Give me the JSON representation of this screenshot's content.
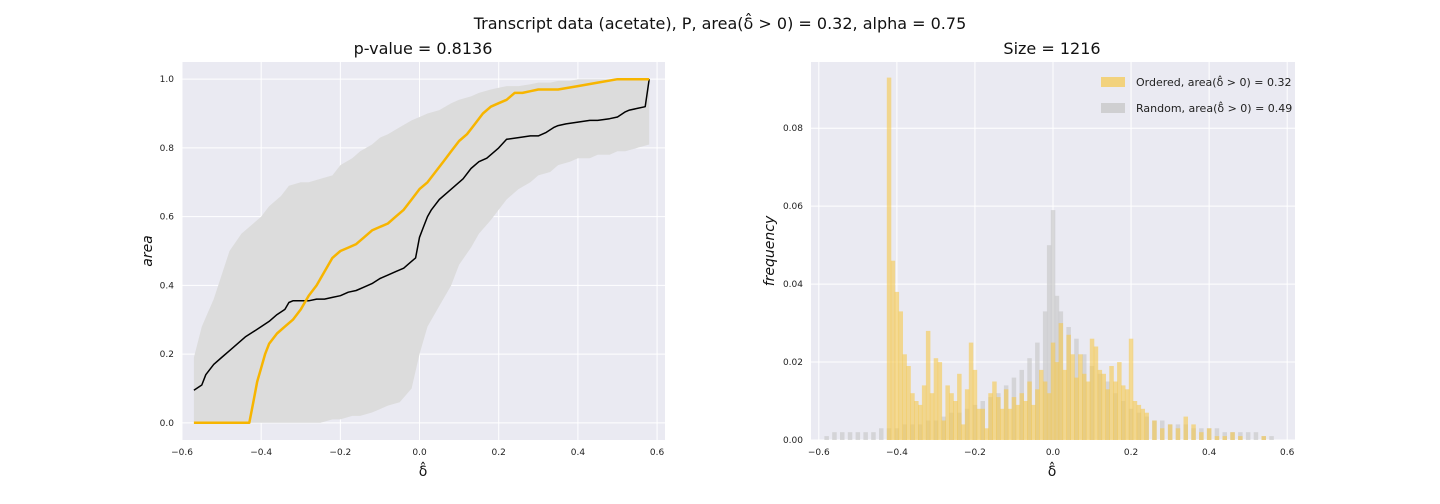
{
  "figure": {
    "suptitle": "Transcript data (acetate), P, area(δ̂ > 0) = 0.32, alpha = 0.75"
  },
  "colors": {
    "axes_bg": "#eaeaf2",
    "grid": "#ffffff",
    "ordered": "#f7b500",
    "band": "#dcdcdc",
    "null_line": "#000000",
    "ordered_hist": "#f5c84c",
    "random_hist": "#c8c8c8"
  },
  "chart_data": [
    {
      "type": "line",
      "title": "p-value = 0.8136",
      "xlabel": "δ̂",
      "ylabel": "area",
      "xlim": [
        -0.6,
        0.62
      ],
      "ylim": [
        -0.05,
        1.05
      ],
      "xticks": [
        -0.6,
        -0.4,
        -0.2,
        0.0,
        0.2,
        0.4,
        0.6
      ],
      "xtick_labels": [
        "−0.6",
        "−0.4",
        "−0.2",
        "0.0",
        "0.2",
        "0.4",
        "0.6"
      ],
      "yticks": [
        0.0,
        0.2,
        0.4,
        0.6,
        0.8,
        1.0
      ],
      "ytick_labels": [
        "0.0",
        "0.2",
        "0.4",
        "0.6",
        "0.8",
        "1.0"
      ],
      "grid": true,
      "band": {
        "x": [
          -0.57,
          -0.55,
          -0.52,
          -0.5,
          -0.48,
          -0.45,
          -0.42,
          -0.4,
          -0.38,
          -0.35,
          -0.33,
          -0.3,
          -0.28,
          -0.25,
          -0.22,
          -0.2,
          -0.17,
          -0.15,
          -0.12,
          -0.1,
          -0.08,
          -0.05,
          -0.02,
          0.0,
          0.02,
          0.05,
          0.08,
          0.1,
          0.13,
          0.15,
          0.18,
          0.2,
          0.22,
          0.25,
          0.28,
          0.3,
          0.33,
          0.35,
          0.38,
          0.4,
          0.43,
          0.45,
          0.48,
          0.5,
          0.52,
          0.55,
          0.58
        ],
        "upper": [
          0.19,
          0.28,
          0.36,
          0.43,
          0.5,
          0.55,
          0.58,
          0.6,
          0.63,
          0.66,
          0.69,
          0.7,
          0.7,
          0.71,
          0.72,
          0.75,
          0.77,
          0.79,
          0.81,
          0.83,
          0.84,
          0.86,
          0.88,
          0.89,
          0.9,
          0.91,
          0.93,
          0.94,
          0.95,
          0.96,
          0.97,
          0.975,
          0.98,
          0.98,
          0.985,
          0.99,
          0.99,
          0.995,
          0.995,
          1.0,
          1.0,
          1.0,
          1.0,
          1.0,
          1.0,
          1.0,
          1.0
        ],
        "lower": [
          0.0,
          0.0,
          0.0,
          0.0,
          0.0,
          0.0,
          0.0,
          0.0,
          0.0,
          0.0,
          0.0,
          0.0,
          0.0,
          0.0,
          0.01,
          0.01,
          0.02,
          0.02,
          0.03,
          0.04,
          0.05,
          0.06,
          0.1,
          0.2,
          0.28,
          0.34,
          0.4,
          0.46,
          0.51,
          0.55,
          0.59,
          0.62,
          0.65,
          0.68,
          0.7,
          0.72,
          0.73,
          0.75,
          0.76,
          0.77,
          0.77,
          0.78,
          0.78,
          0.79,
          0.79,
          0.8,
          0.81
        ]
      },
      "series": [
        {
          "x": [
            -0.57,
            -0.55,
            -0.54,
            -0.52,
            -0.5,
            -0.48,
            -0.46,
            -0.44,
            -0.42,
            -0.4,
            -0.38,
            -0.36,
            -0.34,
            -0.33,
            -0.32,
            -0.3,
            -0.28,
            -0.26,
            -0.24,
            -0.22,
            -0.2,
            -0.18,
            -0.16,
            -0.14,
            -0.12,
            -0.1,
            -0.08,
            -0.06,
            -0.04,
            -0.03,
            -0.02,
            -0.01,
            0.0,
            0.01,
            0.02,
            0.03,
            0.05,
            0.07,
            0.09,
            0.11,
            0.13,
            0.15,
            0.17,
            0.19,
            0.2,
            0.22,
            0.25,
            0.28,
            0.3,
            0.32,
            0.34,
            0.35,
            0.37,
            0.4,
            0.43,
            0.45,
            0.48,
            0.5,
            0.52,
            0.53,
            0.55,
            0.57,
            0.58
          ],
          "y": [
            0.095,
            0.11,
            0.14,
            0.17,
            0.19,
            0.21,
            0.23,
            0.25,
            0.265,
            0.28,
            0.295,
            0.315,
            0.33,
            0.35,
            0.355,
            0.355,
            0.355,
            0.36,
            0.36,
            0.365,
            0.37,
            0.38,
            0.385,
            0.395,
            0.405,
            0.42,
            0.43,
            0.44,
            0.45,
            0.46,
            0.47,
            0.48,
            0.54,
            0.57,
            0.6,
            0.62,
            0.65,
            0.67,
            0.69,
            0.71,
            0.74,
            0.76,
            0.77,
            0.79,
            0.8,
            0.825,
            0.83,
            0.835,
            0.835,
            0.845,
            0.86,
            0.865,
            0.87,
            0.875,
            0.88,
            0.88,
            0.885,
            0.89,
            0.905,
            0.91,
            0.915,
            0.92,
            1.0
          ]
        },
        {
          "x": [
            -0.57,
            -0.52,
            -0.47,
            -0.43,
            -0.42,
            -0.41,
            -0.4,
            -0.39,
            -0.38,
            -0.36,
            -0.34,
            -0.32,
            -0.3,
            -0.28,
            -0.26,
            -0.24,
            -0.22,
            -0.2,
            -0.18,
            -0.16,
            -0.14,
            -0.12,
            -0.1,
            -0.08,
            -0.06,
            -0.04,
            -0.02,
            0.0,
            0.02,
            0.04,
            0.06,
            0.08,
            0.1,
            0.12,
            0.14,
            0.16,
            0.18,
            0.2,
            0.22,
            0.24,
            0.26,
            0.28,
            0.3,
            0.35,
            0.4,
            0.45,
            0.5,
            0.55,
            0.58
          ],
          "y": [
            0.0,
            0.0,
            0.0,
            0.0,
            0.06,
            0.12,
            0.16,
            0.2,
            0.23,
            0.26,
            0.28,
            0.3,
            0.33,
            0.37,
            0.4,
            0.44,
            0.48,
            0.5,
            0.51,
            0.52,
            0.54,
            0.56,
            0.57,
            0.58,
            0.6,
            0.62,
            0.65,
            0.68,
            0.7,
            0.73,
            0.76,
            0.79,
            0.82,
            0.84,
            0.87,
            0.9,
            0.92,
            0.93,
            0.94,
            0.96,
            0.96,
            0.965,
            0.97,
            0.97,
            0.98,
            0.99,
            1.0,
            1.0,
            1.0
          ]
        }
      ]
    },
    {
      "type": "bar",
      "title": "Size = 1216",
      "xlabel": "δ̂",
      "ylabel": "frequency",
      "xlim": [
        -0.62,
        0.62
      ],
      "ylim": [
        0,
        0.097
      ],
      "xticks": [
        -0.6,
        -0.4,
        -0.2,
        0.0,
        0.2,
        0.4,
        0.6
      ],
      "xtick_labels": [
        "−0.6",
        "−0.4",
        "−0.2",
        "0.0",
        "0.2",
        "0.4",
        "0.6"
      ],
      "yticks": [
        0.0,
        0.02,
        0.04,
        0.06,
        0.08
      ],
      "ytick_labels": [
        "0.00",
        "0.02",
        "0.04",
        "0.06",
        "0.08"
      ],
      "grid": true,
      "legend_position": "top-right",
      "bin_width": 0.0115,
      "series": [
        {
          "name": "Ordered, area(δ̂ > 0) = 0.32",
          "x": [
            -0.42,
            -0.41,
            -0.4,
            -0.39,
            -0.38,
            -0.37,
            -0.36,
            -0.35,
            -0.34,
            -0.33,
            -0.32,
            -0.31,
            -0.3,
            -0.29,
            -0.28,
            -0.27,
            -0.26,
            -0.25,
            -0.24,
            -0.23,
            -0.22,
            -0.21,
            -0.2,
            -0.19,
            -0.18,
            -0.17,
            -0.16,
            -0.15,
            -0.14,
            -0.13,
            -0.12,
            -0.11,
            -0.1,
            -0.09,
            -0.08,
            -0.07,
            -0.06,
            -0.05,
            -0.04,
            -0.03,
            -0.02,
            -0.01,
            0.0,
            0.01,
            0.02,
            0.03,
            0.04,
            0.05,
            0.06,
            0.07,
            0.08,
            0.09,
            0.1,
            0.11,
            0.12,
            0.13,
            0.14,
            0.15,
            0.16,
            0.17,
            0.18,
            0.19,
            0.2,
            0.21,
            0.22,
            0.23,
            0.24,
            0.26,
            0.28,
            0.3,
            0.32,
            0.34,
            0.36,
            0.38,
            0.4,
            0.42,
            0.44,
            0.46,
            0.48,
            0.5,
            0.52,
            0.54
          ],
          "values": [
            0.093,
            0.046,
            0.038,
            0.033,
            0.022,
            0.019,
            0.012,
            0.01,
            0.009,
            0.014,
            0.028,
            0.012,
            0.021,
            0.02,
            0.005,
            0.014,
            0.012,
            0.01,
            0.017,
            0.004,
            0.013,
            0.025,
            0.018,
            0.008,
            0.008,
            0.003,
            0.012,
            0.015,
            0.011,
            0.008,
            0.013,
            0.008,
            0.011,
            0.009,
            0.012,
            0.01,
            0.015,
            0.009,
            0.013,
            0.018,
            0.015,
            0.012,
            0.025,
            0.02,
            0.03,
            0.018,
            0.027,
            0.022,
            0.016,
            0.022,
            0.017,
            0.015,
            0.026,
            0.024,
            0.018,
            0.017,
            0.013,
            0.019,
            0.015,
            0.02,
            0.014,
            0.013,
            0.026,
            0.01,
            0.009,
            0.008,
            0.007,
            0.005,
            0.003,
            0.004,
            0.003,
            0.006,
            0.004,
            0.002,
            0.003,
            0.001,
            0.001,
            0.002,
            0.001,
            0.0,
            0.0,
            0.001
          ]
        },
        {
          "name": "Random, area(δ̂ > 0) = 0.49",
          "x": [
            -0.58,
            -0.56,
            -0.54,
            -0.52,
            -0.5,
            -0.48,
            -0.46,
            -0.44,
            -0.42,
            -0.4,
            -0.38,
            -0.36,
            -0.34,
            -0.32,
            -0.3,
            -0.28,
            -0.26,
            -0.24,
            -0.22,
            -0.2,
            -0.18,
            -0.16,
            -0.14,
            -0.12,
            -0.1,
            -0.08,
            -0.06,
            -0.04,
            -0.02,
            -0.01,
            0.0,
            0.01,
            0.02,
            0.04,
            0.06,
            0.08,
            0.1,
            0.12,
            0.14,
            0.16,
            0.18,
            0.2,
            0.22,
            0.24,
            0.26,
            0.28,
            0.3,
            0.32,
            0.34,
            0.36,
            0.38,
            0.4,
            0.42,
            0.44,
            0.46,
            0.48,
            0.5,
            0.52,
            0.54,
            0.56
          ],
          "values": [
            0.001,
            0.002,
            0.002,
            0.002,
            0.002,
            0.002,
            0.002,
            0.003,
            0.003,
            0.003,
            0.004,
            0.004,
            0.004,
            0.005,
            0.005,
            0.006,
            0.007,
            0.007,
            0.008,
            0.009,
            0.01,
            0.011,
            0.012,
            0.014,
            0.016,
            0.018,
            0.021,
            0.025,
            0.033,
            0.05,
            0.059,
            0.037,
            0.033,
            0.029,
            0.026,
            0.022,
            0.019,
            0.017,
            0.015,
            0.012,
            0.01,
            0.008,
            0.007,
            0.006,
            0.005,
            0.005,
            0.004,
            0.004,
            0.004,
            0.003,
            0.003,
            0.003,
            0.003,
            0.002,
            0.002,
            0.002,
            0.002,
            0.002,
            0.001,
            0.001
          ]
        }
      ]
    }
  ]
}
